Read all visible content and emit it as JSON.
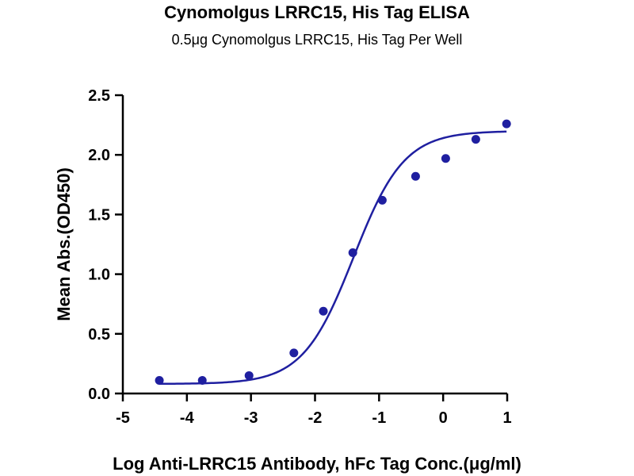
{
  "chart_data": {
    "type": "scatter",
    "title": "Cynomolgus LRRC15, His Tag ELISA",
    "subtitle": "0.5μg Cynomolgus LRRC15, His Tag Per Well",
    "xlabel": "Log Anti-LRRC15 Antibody, hFc Tag Conc.(μg/ml)",
    "ylabel": "Mean Abs.(OD450)",
    "xlim": [
      -5,
      1
    ],
    "ylim": [
      0,
      2.5
    ],
    "xticks": [
      "-5",
      "-4",
      "-3",
      "-2",
      "-1",
      "0",
      "1"
    ],
    "yticks": [
      "0.0",
      "0.5",
      "1.0",
      "1.5",
      "2.0",
      "2.5"
    ],
    "grid": false,
    "color": "#1f1fa0",
    "series": [
      {
        "points": [
          {
            "x": -4.43,
            "y": 0.11
          },
          {
            "x": -3.76,
            "y": 0.11
          },
          {
            "x": -3.03,
            "y": 0.15
          },
          {
            "x": -2.33,
            "y": 0.34
          },
          {
            "x": -1.87,
            "y": 0.69
          },
          {
            "x": -1.41,
            "y": 1.18
          },
          {
            "x": -0.95,
            "y": 1.62
          },
          {
            "x": -0.43,
            "y": 1.82
          },
          {
            "x": 0.04,
            "y": 1.97
          },
          {
            "x": 0.51,
            "y": 2.13
          },
          {
            "x": 0.99,
            "y": 2.26
          }
        ],
        "fit": {
          "model": "4PL",
          "bottom": 0.08,
          "top": 2.2,
          "logEC50": -1.4,
          "hill": 1.1
        }
      }
    ]
  }
}
